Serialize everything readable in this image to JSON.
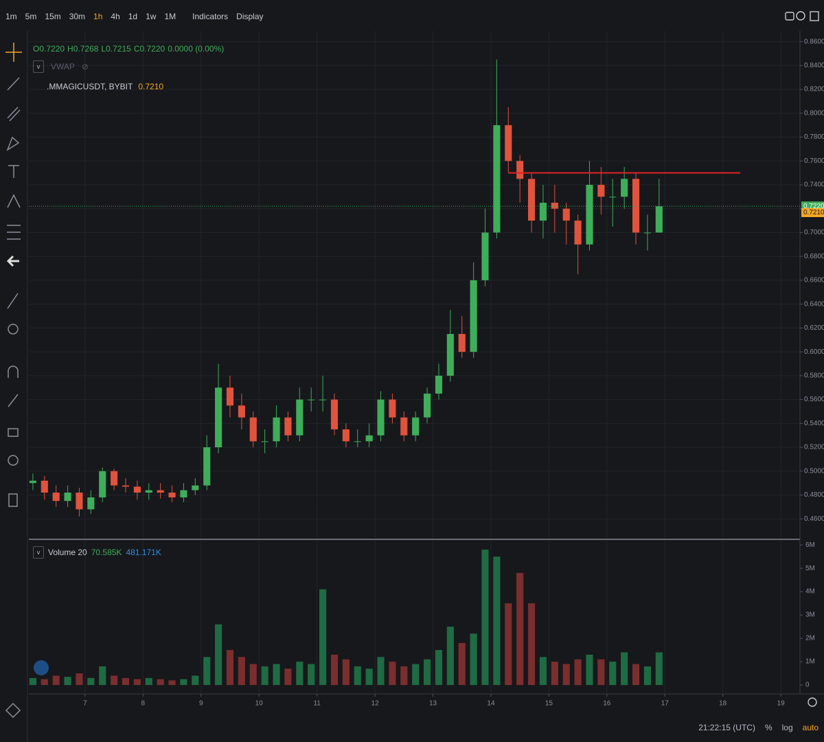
{
  "toolbar": {
    "intervals": [
      "1m",
      "5m",
      "15m",
      "30m",
      "1h",
      "4h",
      "1d",
      "1w",
      "1M"
    ],
    "active_interval_index": 4,
    "menus": [
      "Indicators",
      "Display"
    ]
  },
  "legend": {
    "ohlc": [
      "O0.7220",
      "H0.7268",
      "L0.7215",
      "C0.7220",
      "0.0000 (0.00%)"
    ],
    "indicator": "VWAP",
    "symbol": ".MMAGICUSDT, BYBIT",
    "volume_values": [
      "70.585K",
      "481.171K"
    ]
  },
  "footer": {
    "clock": "21:22:15 (UTC)",
    "buttons": [
      "%",
      "log",
      "auto"
    ]
  },
  "chart_data": {
    "type": "candlestick",
    "x": [
      6.1,
      6.3,
      6.5,
      6.7,
      6.9,
      7.1,
      7.3,
      7.5,
      7.7,
      7.9,
      8.1,
      8.3,
      8.5,
      8.7,
      8.9,
      9.1,
      9.3,
      9.5,
      9.7,
      9.9,
      10.1,
      10.3,
      10.5,
      10.7,
      10.9,
      11.1,
      11.3,
      11.5,
      11.7,
      11.9,
      12.1,
      12.3,
      12.5,
      12.7,
      12.9,
      13.1,
      13.3,
      13.5,
      13.7,
      13.9,
      14.1,
      14.3,
      14.5,
      14.7,
      14.9,
      15.1,
      15.3,
      15.5,
      15.7,
      15.9,
      16.1,
      16.3,
      16.5,
      16.7,
      16.9
    ],
    "open": [
      0.49,
      0.492,
      0.482,
      0.475,
      0.482,
      0.468,
      0.478,
      0.5,
      0.488,
      0.487,
      0.482,
      0.484,
      0.482,
      0.478,
      0.484,
      0.488,
      0.52,
      0.57,
      0.555,
      0.545,
      0.525,
      0.525,
      0.545,
      0.53,
      0.56,
      0.56,
      0.56,
      0.535,
      0.525,
      0.525,
      0.53,
      0.56,
      0.545,
      0.53,
      0.545,
      0.565,
      0.58,
      0.615,
      0.6,
      0.66,
      0.7,
      0.79,
      0.76,
      0.745,
      0.71,
      0.725,
      0.72,
      0.71,
      0.69,
      0.74,
      0.73,
      0.73,
      0.745,
      0.7,
      0.7
    ],
    "high": [
      0.498,
      0.496,
      0.488,
      0.488,
      0.486,
      0.484,
      0.503,
      0.502,
      0.494,
      0.492,
      0.49,
      0.49,
      0.488,
      0.49,
      0.494,
      0.53,
      0.59,
      0.58,
      0.565,
      0.55,
      0.535,
      0.555,
      0.55,
      0.57,
      0.57,
      0.58,
      0.565,
      0.54,
      0.535,
      0.54,
      0.567,
      0.565,
      0.55,
      0.55,
      0.57,
      0.59,
      0.635,
      0.63,
      0.675,
      0.72,
      0.845,
      0.805,
      0.765,
      0.75,
      0.74,
      0.74,
      0.725,
      0.715,
      0.76,
      0.755,
      0.745,
      0.755,
      0.75,
      0.715,
      0.745
    ],
    "low": [
      0.484,
      0.476,
      0.47,
      0.47,
      0.462,
      0.464,
      0.474,
      0.484,
      0.482,
      0.476,
      0.476,
      0.477,
      0.474,
      0.474,
      0.48,
      0.484,
      0.515,
      0.545,
      0.535,
      0.52,
      0.515,
      0.52,
      0.525,
      0.525,
      0.55,
      0.55,
      0.53,
      0.52,
      0.52,
      0.52,
      0.525,
      0.54,
      0.525,
      0.525,
      0.54,
      0.56,
      0.575,
      0.595,
      0.595,
      0.655,
      0.695,
      0.75,
      0.725,
      0.7,
      0.695,
      0.7,
      0.69,
      0.665,
      0.685,
      0.715,
      0.705,
      0.72,
      0.69,
      0.685,
      0.7
    ],
    "close": [
      0.492,
      0.482,
      0.475,
      0.482,
      0.468,
      0.478,
      0.5,
      0.488,
      0.487,
      0.482,
      0.484,
      0.482,
      0.478,
      0.484,
      0.488,
      0.52,
      0.57,
      0.555,
      0.545,
      0.525,
      0.525,
      0.545,
      0.53,
      0.56,
      0.56,
      0.56,
      0.535,
      0.525,
      0.525,
      0.53,
      0.56,
      0.545,
      0.53,
      0.545,
      0.565,
      0.58,
      0.615,
      0.6,
      0.66,
      0.7,
      0.79,
      0.76,
      0.745,
      0.71,
      0.725,
      0.72,
      0.71,
      0.69,
      0.74,
      0.73,
      0.73,
      0.745,
      0.7,
      0.7,
      0.722
    ],
    "up_color": "#3fae5a",
    "down_color": "#e0533d",
    "grid": true,
    "xlim": [
      6.03,
      19.33
    ],
    "xticks": [
      7,
      8,
      9,
      10,
      11,
      12,
      13,
      14,
      15,
      16,
      17,
      18,
      19
    ],
    "ylim": [
      0.444,
      0.869
    ],
    "yticks": [
      {
        "value": 0.46,
        "label": "0.4600"
      },
      {
        "value": 0.48,
        "label": "0.4800"
      },
      {
        "value": 0.5,
        "label": "0.5000"
      },
      {
        "value": 0.52,
        "label": "0.5200"
      },
      {
        "value": 0.54,
        "label": "0.5400"
      },
      {
        "value": 0.56,
        "label": "0.5600"
      },
      {
        "value": 0.58,
        "label": "0.5800"
      },
      {
        "value": 0.6,
        "label": "0.6000"
      },
      {
        "value": 0.62,
        "label": "0.6200"
      },
      {
        "value": 0.64,
        "label": "0.6400"
      },
      {
        "value": 0.66,
        "label": "0.6600"
      },
      {
        "value": 0.68,
        "label": "0.6800"
      },
      {
        "value": 0.7,
        "label": "0.7000"
      },
      {
        "value": 0.72,
        "label": "0.7200"
      },
      {
        "value": 0.74,
        "label": "0.7400"
      },
      {
        "value": 0.76,
        "label": "0.7600"
      },
      {
        "value": 0.78,
        "label": "0.7800"
      },
      {
        "value": 0.8,
        "label": "0.8000"
      },
      {
        "value": 0.82,
        "label": "0.8200"
      },
      {
        "value": 0.84,
        "label": "0.8400"
      },
      {
        "value": 0.86,
        "label": "0.8600"
      }
    ],
    "level_line": {
      "value": 0.75,
      "x": [
        14.3,
        18.3
      ],
      "color": "#e02424"
    },
    "last_price": {
      "value": 0.722,
      "label": "0.7220",
      "color": "#3fae5a"
    },
    "mark_price": {
      "value": 0.721,
      "label": "0.7210",
      "color": "#f5a623"
    },
    "volume": {
      "name": "Volume 20",
      "values": [
        300000,
        250000,
        400000,
        350000,
        500000,
        300000,
        800000,
        400000,
        300000,
        250000,
        300000,
        250000,
        200000,
        250000,
        400000,
        1200000,
        2600000,
        1500000,
        1200000,
        900000,
        800000,
        900000,
        700000,
        1000000,
        900000,
        4100000,
        1300000,
        1100000,
        800000,
        700000,
        1200000,
        1000000,
        800000,
        900000,
        1100000,
        1500000,
        2500000,
        1800000,
        2200000,
        5800000,
        5500000,
        3500000,
        4800000,
        3500000,
        1200000,
        1000000,
        900000,
        1100000,
        1300000,
        1100000,
        1000000,
        1400000,
        900000,
        800000,
        1400000
      ],
      "up_color": "#1f6b43",
      "down_color": "#7a2e2e",
      "ylim": [
        -380000,
        6180000
      ],
      "yticks": [
        0,
        {
          "value": 1000000,
          "label": "1M"
        },
        {
          "value": 2000000,
          "label": "2M"
        },
        {
          "value": 3000000,
          "label": "3M"
        },
        {
          "value": 4000000,
          "label": "4M"
        },
        {
          "value": 5000000,
          "label": "5M"
        },
        {
          "value": 6000000,
          "label": "6M"
        }
      ]
    }
  }
}
